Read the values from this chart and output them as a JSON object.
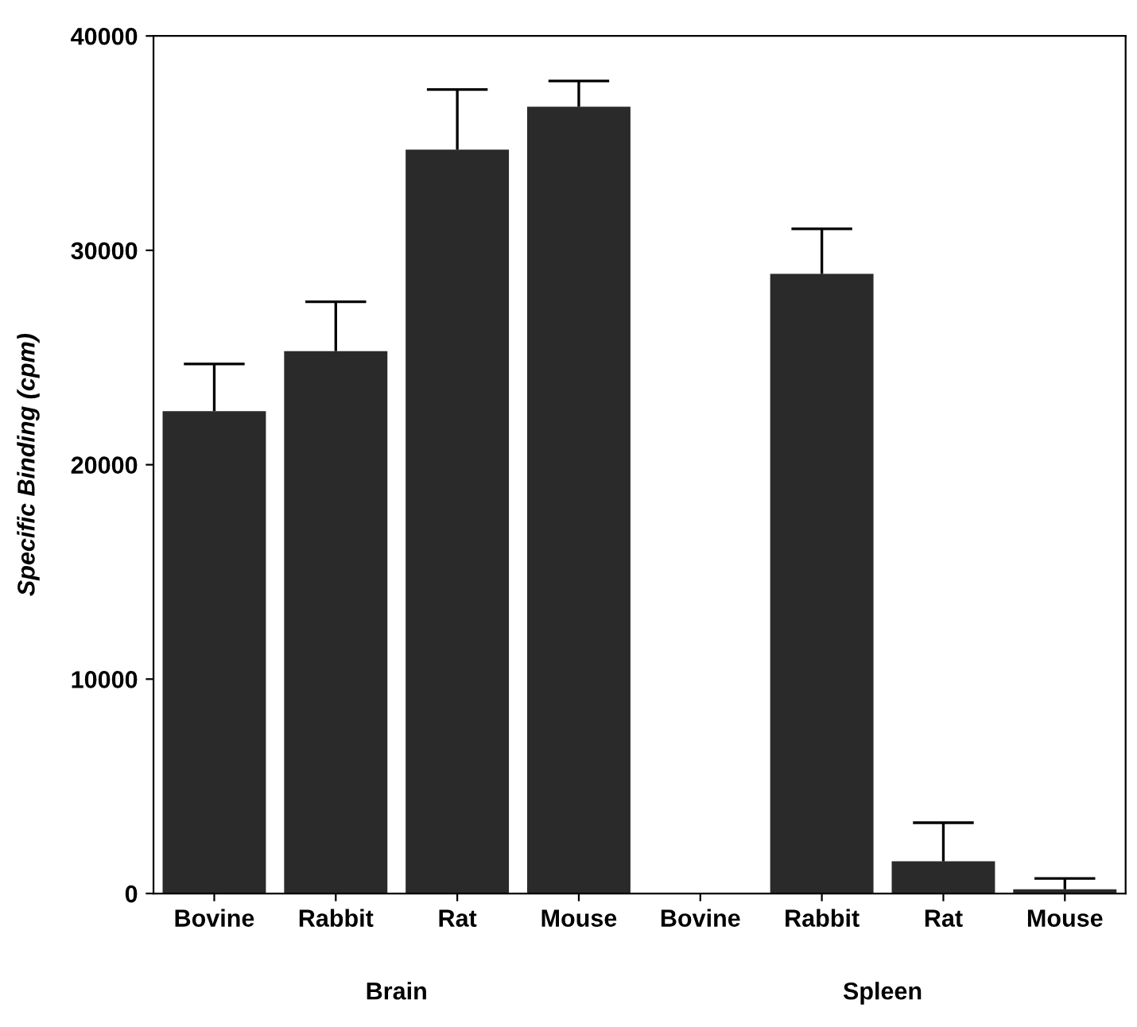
{
  "chart_data": {
    "type": "bar",
    "ylabel": "Specific Binding (cpm)",
    "categories": [
      "Bovine",
      "Rabbit",
      "Rat",
      "Mouse",
      "Bovine",
      "Rabbit",
      "Rat",
      "Mouse"
    ],
    "values": [
      22500,
      25300,
      34700,
      36700,
      0,
      28900,
      1500,
      200
    ],
    "errors": [
      [
        22500,
        24700
      ],
      [
        25300,
        27600
      ],
      [
        34700,
        37500
      ],
      [
        36700,
        37900
      ],
      null,
      [
        28900,
        31000
      ],
      [
        1500,
        3300
      ],
      [
        200,
        700
      ]
    ],
    "color": "#2a2a2a",
    "ylim": [
      0,
      40000
    ],
    "yticks": [
      0,
      10000,
      20000,
      30000,
      40000
    ],
    "annotations": [
      "Brain",
      "Spleen"
    ],
    "grid": false,
    "legend": false
  }
}
